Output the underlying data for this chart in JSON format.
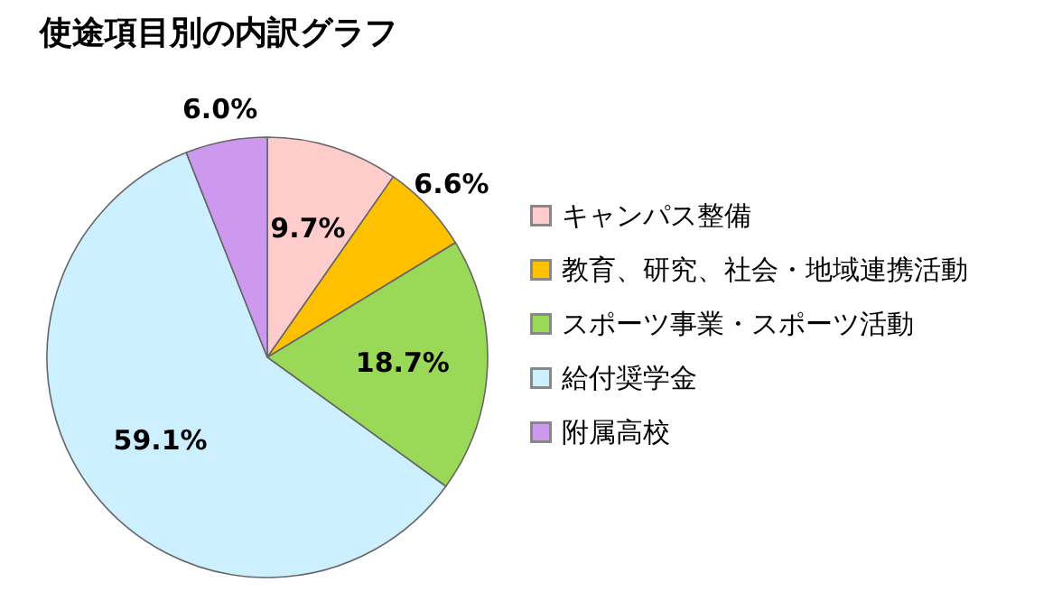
{
  "chart_data": {
    "type": "pie",
    "title": "使途項目別の内訳グラフ",
    "categories": [
      "キャンパス整備",
      "教育、研究、社会・地域連携活動",
      "スポーツ事業・スポーツ活動",
      "給付奨学金",
      "附属高校"
    ],
    "values": [
      9.7,
      6.6,
      18.7,
      59.1,
      6.0
    ],
    "value_labels": [
      "9.7%",
      "6.6%",
      "18.7%",
      "59.1%",
      "6.0%"
    ],
    "colors": [
      "#ffcccc",
      "#ffc000",
      "#99d957",
      "#ccf0ff",
      "#cc99ee"
    ],
    "legend": "right"
  }
}
